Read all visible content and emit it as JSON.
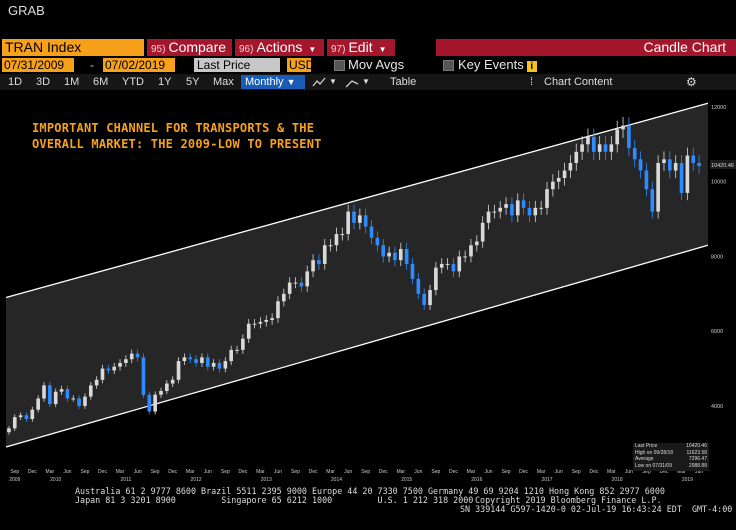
{
  "app": {
    "grab_label": "GRAB"
  },
  "toolbar": {
    "ticker": "TRAN Index",
    "compare": {
      "num": "95)",
      "label": "Compare"
    },
    "actions": {
      "num": "96)",
      "label": "Actions"
    },
    "edit": {
      "num": "97)",
      "label": "Edit"
    },
    "chart_type": "Candle Chart"
  },
  "settings": {
    "start_date": "07/31/2009",
    "end_date": "07/02/2019",
    "price_field": "Last Price",
    "currency": "USD",
    "mov_avgs_label": "Mov Avgs",
    "key_events_label": "Key Events"
  },
  "ranges": [
    "1D",
    "3D",
    "1M",
    "6M",
    "YTD",
    "1Y",
    "5Y",
    "Max"
  ],
  "periodicity": "Monthly",
  "table_label": "Table",
  "chart_content_label": "Chart Content",
  "annotation": {
    "line1": "IMPORTANT CHANNEL FOR TRANSPORTS & THE",
    "line2": "OVERALL MARKET: THE 2009-LOW TO PRESENT"
  },
  "legend": [
    {
      "label": "Last Price",
      "value": "10420.46"
    },
    {
      "label": "High on 09/28/18",
      "value": "11623.58"
    },
    {
      "label": "Average",
      "value": "7296.47"
    },
    {
      "label": "Low on 07/31/09",
      "value": "2988.88"
    }
  ],
  "last_price_tag": "10420.46",
  "footer": {
    "line1": "Australia 61 2 9777 8600 Brazil 5511 2395 9000 Europe 44 20 7330 7500 Germany 49 69 9204 1210 Hong Kong 852 2977 6000",
    "line2a": "Japan 81 3 3201 8900         Singapore 65 6212 1000         U.S. 1 212 318 2000",
    "line2b": "Copyright 2019 Bloomberg Finance L.P.",
    "line3": "SN 339144 G597-1420-0 02-Jul-19 16:43:24 EDT  GMT-4:00"
  },
  "colors": {
    "accent": "#f7a11a",
    "up": "#d9d9d9",
    "down": "#2e8bff",
    "menu": "#a4162b"
  },
  "chart_data": {
    "type": "candlestick",
    "title": "",
    "xlabel": "",
    "ylabel": "",
    "ylim": [
      2500,
      12400
    ],
    "yticks": [
      4000,
      6000,
      8000,
      10000,
      12000
    ],
    "ytick_labels": [
      "4000",
      "6000",
      "8000",
      "10000",
      "12000"
    ],
    "grid": false,
    "month_ticks": [
      "Sep",
      "Dec",
      "Mar",
      "Jun",
      "Sep",
      "Dec",
      "Mar",
      "Jun",
      "Sep",
      "Dec",
      "Mar",
      "Jun",
      "Sep",
      "Dec",
      "Mar",
      "Jun",
      "Sep",
      "Dec",
      "Mar",
      "Jun",
      "Sep",
      "Dec",
      "Mar",
      "Jun",
      "Sep",
      "Dec",
      "Mar",
      "Jun",
      "Sep",
      "Dec",
      "Mar",
      "Jun",
      "Sep",
      "Dec",
      "Mar",
      "Jun",
      "Sep",
      "Dec",
      "Mar",
      "Jun"
    ],
    "year_ticks": [
      {
        "label": "2009",
        "month_index": 1
      },
      {
        "label": "2010",
        "month_index": 8
      },
      {
        "label": "2011",
        "month_index": 20
      },
      {
        "label": "2012",
        "month_index": 32
      },
      {
        "label": "2013",
        "month_index": 44
      },
      {
        "label": "2014",
        "month_index": 56
      },
      {
        "label": "2015",
        "month_index": 68
      },
      {
        "label": "2016",
        "month_index": 80
      },
      {
        "label": "2017",
        "month_index": 92
      },
      {
        "label": "2018",
        "month_index": 104
      },
      {
        "label": "2019",
        "month_index": 116
      }
    ],
    "channel": {
      "upper": [
        {
          "month_index": 0,
          "value": 6900
        },
        {
          "month_index": 119,
          "value": 12100
        }
      ],
      "lower": [
        {
          "month_index": 0,
          "value": 2900
        },
        {
          "month_index": 119,
          "value": 8300
        }
      ]
    },
    "closes": [
      3400,
      3700,
      3750,
      3650,
      3900,
      4200,
      4550,
      4050,
      4380,
      4450,
      4200,
      4200,
      4000,
      4250,
      4550,
      4700,
      5000,
      4950,
      5050,
      5150,
      5250,
      5400,
      5300,
      4300,
      3850,
      4300,
      4400,
      4600,
      4700,
      5200,
      5300,
      5250,
      5150,
      5300,
      5050,
      5150,
      5000,
      5200,
      5500,
      5500,
      5800,
      6200,
      6200,
      6250,
      6300,
      6350,
      6800,
      7000,
      7300,
      7300,
      7200,
      7600,
      7900,
      7800,
      8300,
      8300,
      8600,
      8600,
      9200,
      8900,
      9100,
      8800,
      8500,
      8300,
      8000,
      8100,
      7900,
      8200,
      7800,
      7400,
      7000,
      6700,
      7100,
      7700,
      7800,
      7800,
      7600,
      8000,
      8000,
      8300,
      8400,
      8900,
      9200,
      9200,
      9300,
      9400,
      9100,
      9500,
      9300,
      9100,
      9300,
      9300,
      9800,
      10000,
      10100,
      10300,
      10500,
      10800,
      11000,
      11200,
      10800,
      11000,
      10800,
      11000,
      11400,
      11500,
      10900,
      10600,
      10300,
      9800,
      9200,
      10500,
      10600,
      10300,
      10500,
      9700,
      10700,
      10500,
      10420
    ]
  }
}
